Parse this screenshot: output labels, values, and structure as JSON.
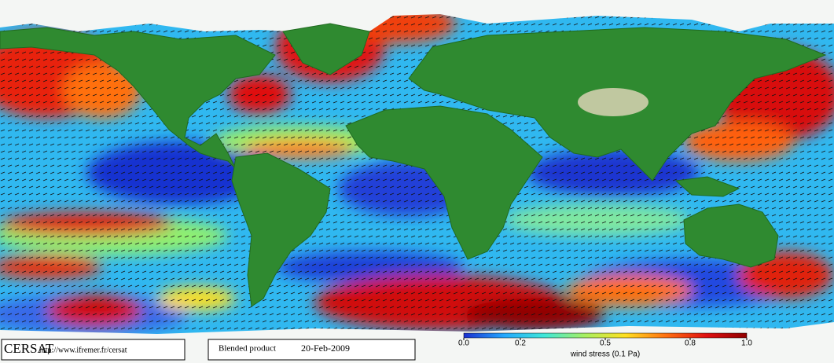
{
  "header": {
    "logo": "CERSAT",
    "url": "http://www.ifremer.fr/cersat",
    "product": "Blended product",
    "date": "20-Feb-2009"
  },
  "colorbar": {
    "label": "wind stress (0.1 Pa)",
    "lim": [
      0,
      1
    ],
    "ticks": [
      {
        "value": 0,
        "label": "0.0"
      },
      0.2,
      0.5,
      0.8,
      {
        "value": 1,
        "label": "1.0"
      }
    ],
    "colors": [
      "#1a2fd0",
      "#22a8ff",
      "#3fe8d8",
      "#a8f060",
      "#ffe020",
      "#ff7010",
      "#e01010",
      "#900000"
    ]
  }
}
